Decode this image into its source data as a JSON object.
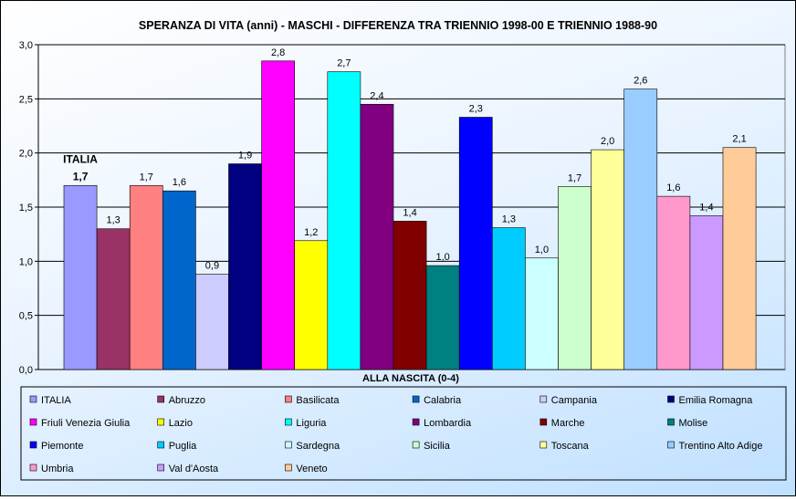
{
  "chart_data": {
    "type": "bar",
    "title": "SPERANZA DI VITA (anni) - MASCHI - DIFFERENZA TRA TRIENNIO 1998-00 E TRIENNIO 1988-90",
    "xlabel": "ALLA NASCITA (0-4)",
    "ylabel": "",
    "ylim": [
      0,
      3.0
    ],
    "y_ticks": [
      "0,0",
      "0,5",
      "1,0",
      "1,5",
      "2,0",
      "2,5",
      "3,0"
    ],
    "grid": true,
    "legend_position": "bottom",
    "highlight_label": "ITALIA",
    "series": [
      {
        "name": "ITALIA",
        "value": 1.7,
        "label": "1,7",
        "color": "#9999ff"
      },
      {
        "name": "Abruzzo",
        "value": 1.3,
        "label": "1,3",
        "color": "#993366"
      },
      {
        "name": "Basilicata",
        "value": 1.7,
        "label": "1,7",
        "color": "#ff8080"
      },
      {
        "name": "Calabria",
        "value": 1.65,
        "label": "1,6",
        "color": "#0066cc"
      },
      {
        "name": "Campania",
        "value": 0.88,
        "label": "0,9",
        "color": "#ccccff"
      },
      {
        "name": "Emilia Romagna",
        "value": 1.9,
        "label": "1,9",
        "color": "#000080"
      },
      {
        "name": "Friuli Venezia Giulia",
        "value": 2.85,
        "label": "2,8",
        "color": "#ff00ff"
      },
      {
        "name": "Lazio",
        "value": 1.19,
        "label": "1,2",
        "color": "#ffff00"
      },
      {
        "name": "Liguria",
        "value": 2.75,
        "label": "2,7",
        "color": "#00ffff"
      },
      {
        "name": "Lombardia",
        "value": 2.45,
        "label": "2,4",
        "color": "#800080"
      },
      {
        "name": "Marche",
        "value": 1.37,
        "label": "1,4",
        "color": "#800000"
      },
      {
        "name": "Molise",
        "value": 0.96,
        "label": "1,0",
        "color": "#008080"
      },
      {
        "name": "Piemonte",
        "value": 2.33,
        "label": "2,3",
        "color": "#0000ff"
      },
      {
        "name": "Puglia",
        "value": 1.31,
        "label": "1,3",
        "color": "#00ccff"
      },
      {
        "name": "Sardegna",
        "value": 1.03,
        "label": "1,0",
        "color": "#ccffff"
      },
      {
        "name": "Sicilia",
        "value": 1.69,
        "label": "1,7",
        "color": "#ccffcc"
      },
      {
        "name": "Toscana",
        "value": 2.03,
        "label": "2,0",
        "color": "#ffff99"
      },
      {
        "name": "Trentino Alto Adige",
        "value": 2.59,
        "label": "2,6",
        "color": "#99ccff"
      },
      {
        "name": "Umbria",
        "value": 1.6,
        "label": "1,6",
        "color": "#ff99cc"
      },
      {
        "name": "Val d'Aosta",
        "value": 1.42,
        "label": "1,4",
        "color": "#cc99ff"
      },
      {
        "name": "Veneto",
        "value": 2.05,
        "label": "2,1",
        "color": "#ffcc99"
      }
    ]
  }
}
